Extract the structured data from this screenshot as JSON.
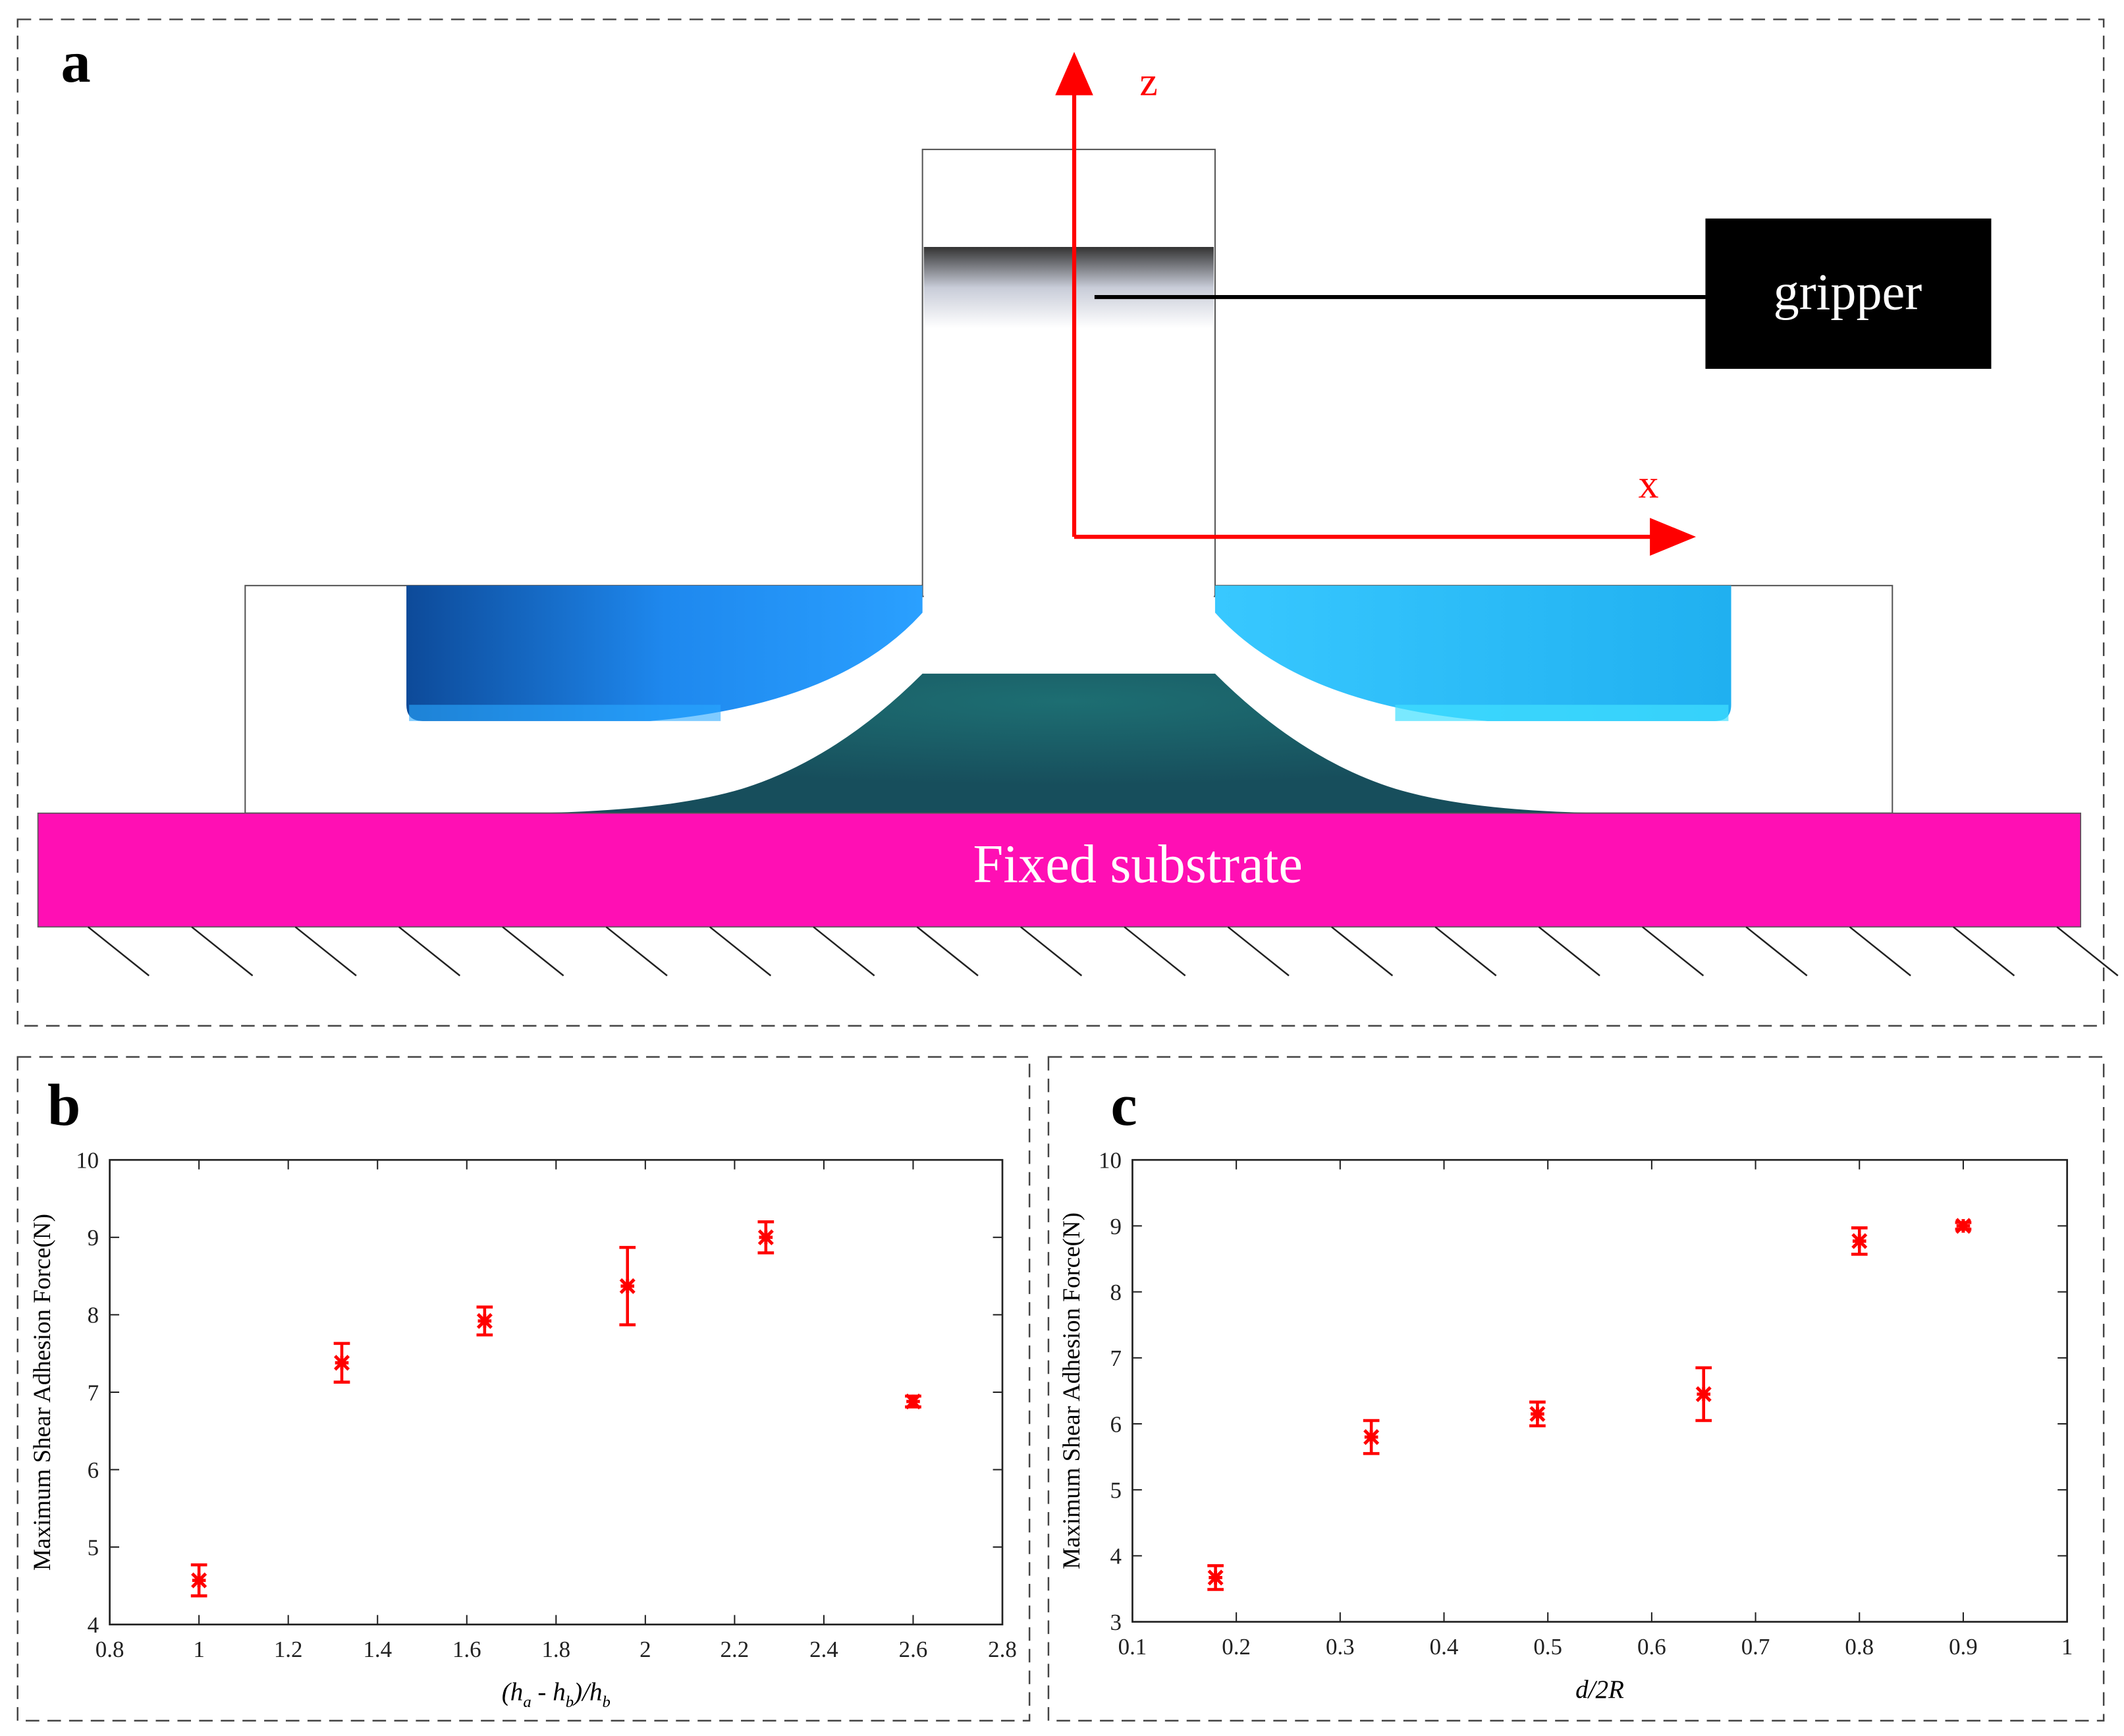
{
  "panels": {
    "a": "a",
    "b": "b",
    "c": "c"
  },
  "diagram": {
    "z_label": "z",
    "x_label": "x",
    "gripper": "gripper",
    "substrate": "Fixed substrate"
  },
  "chart_data": [
    {
      "type": "scatter",
      "x": [
        1,
        1.32,
        1.64,
        1.96,
        2.27,
        2.6
      ],
      "values": [
        4.57,
        7.38,
        7.92,
        8.37,
        9.0,
        6.88
      ],
      "errors": [
        0.2,
        0.25,
        0.18,
        0.5,
        0.2,
        0.07
      ],
      "color": "#ff0000",
      "xlim": [
        0.8,
        2.8
      ],
      "xticks": [
        0.8,
        1,
        1.2,
        1.4,
        1.6,
        1.8,
        2,
        2.2,
        2.4,
        2.6,
        2.8
      ],
      "ylim": [
        4,
        10
      ],
      "yticks": [
        4,
        5,
        6,
        7,
        8,
        9,
        10
      ],
      "xlabel": [
        "(h",
        "a",
        " - h",
        "b",
        ")/h",
        "b"
      ],
      "ylabel": "Maximum Shear Adhesion Force(N)"
    },
    {
      "type": "scatter",
      "x": [
        0.18,
        0.33,
        0.49,
        0.65,
        0.8,
        0.9
      ],
      "values": [
        3.67,
        5.8,
        6.15,
        6.45,
        8.77,
        9.0
      ],
      "errors": [
        0.18,
        0.25,
        0.18,
        0.4,
        0.2,
        0.05
      ],
      "color": "#ff0000",
      "xlim": [
        0.1,
        1
      ],
      "xticks": [
        0.1,
        0.2,
        0.3,
        0.4,
        0.5,
        0.6,
        0.7,
        0.8,
        0.9,
        1
      ],
      "ylim": [
        3,
        10
      ],
      "yticks": [
        3,
        4,
        5,
        6,
        7,
        8,
        9,
        10
      ],
      "xlabel": [
        "d/2R"
      ],
      "ylabel": "Maximum Shear Adhesion Force(N)"
    }
  ]
}
